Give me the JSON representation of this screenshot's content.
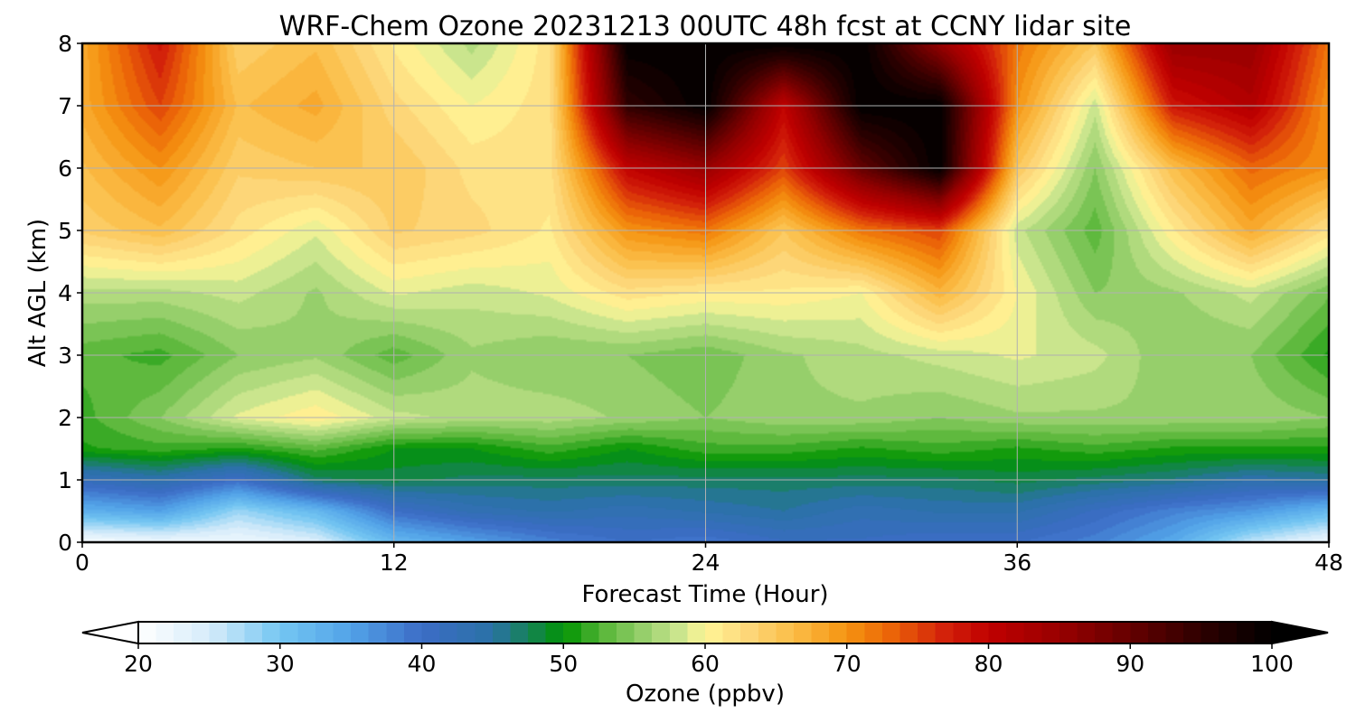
{
  "chart_data": {
    "type": "heatmap",
    "title": "WRF-Chem Ozone  20231213 00UTC 48h fcst at CCNY lidar site",
    "xlabel": "Forecast Time (Hour)",
    "ylabel": "Alt AGL (km)",
    "xlim": [
      0,
      48
    ],
    "ylim": [
      0,
      8
    ],
    "x_ticks": [
      0,
      12,
      24,
      36,
      48
    ],
    "y_ticks": [
      0,
      1,
      2,
      3,
      4,
      5,
      6,
      7,
      8
    ],
    "grid": true,
    "x": [
      0,
      3,
      6,
      9,
      12,
      15,
      18,
      21,
      24,
      27,
      30,
      33,
      36,
      39,
      42,
      45,
      48
    ],
    "y": [
      0,
      0.5,
      1,
      1.5,
      2,
      3,
      4,
      5,
      6,
      7,
      8
    ],
    "z": [
      [
        21,
        22,
        22,
        24,
        32,
        35,
        38,
        40,
        39,
        41,
        41,
        40,
        40,
        38,
        34,
        26,
        22
      ],
      [
        33,
        35,
        28,
        32,
        40,
        43,
        44,
        43,
        44,
        45,
        43,
        44,
        44,
        41,
        38,
        36,
        32
      ],
      [
        42,
        44,
        40,
        47,
        48,
        47,
        47,
        47,
        47,
        47,
        47,
        47,
        48,
        47,
        46,
        44,
        45
      ],
      [
        51,
        52,
        51,
        53,
        50,
        50,
        52,
        50,
        52,
        52,
        51,
        52,
        51,
        52,
        51,
        51,
        51
      ],
      [
        52,
        55,
        59,
        61,
        58,
        57,
        57,
        56,
        55,
        56,
        56,
        55,
        56,
        56,
        56,
        56,
        55
      ],
      [
        53,
        52,
        55,
        56,
        53,
        56,
        55,
        55,
        54,
        56,
        57,
        58,
        59,
        58,
        55,
        55,
        51
      ],
      [
        57,
        57,
        58,
        56,
        59,
        58,
        59,
        62,
        61,
        61,
        60,
        67,
        60,
        55,
        56,
        58,
        54
      ],
      [
        64,
        66,
        62,
        59,
        64,
        63,
        61,
        70,
        72,
        65,
        72,
        75,
        58,
        53,
        61,
        68,
        62
      ],
      [
        66,
        70,
        64,
        65,
        65,
        62,
        62,
        80,
        85,
        75,
        90,
        100,
        65,
        55,
        66,
        73,
        70
      ],
      [
        68,
        75,
        66,
        68,
        63,
        60,
        62,
        95,
        100,
        80,
        100,
        100,
        70,
        58,
        78,
        82,
        70
      ],
      [
        68,
        78,
        64,
        66,
        61,
        57,
        62,
        100,
        100,
        100,
        100,
        85,
        72,
        65,
        85,
        85,
        72
      ]
    ],
    "colorbar": {
      "label": "Ozone  (ppbv)",
      "min": 20,
      "max": 100,
      "ticks": [
        20,
        30,
        40,
        50,
        60,
        70,
        80,
        90,
        100
      ],
      "extend": "both",
      "color_stops": [
        [
          20,
          "#ffffff"
        ],
        [
          25,
          "#d6ecfa"
        ],
        [
          30,
          "#74c6f2"
        ],
        [
          35,
          "#52a3e8"
        ],
        [
          40,
          "#3c6cc6"
        ],
        [
          45,
          "#2a72a6"
        ],
        [
          49,
          "#0a8c28"
        ],
        [
          50,
          "#009300"
        ],
        [
          53,
          "#5cb83c"
        ],
        [
          56,
          "#9ed272"
        ],
        [
          58,
          "#c6e48c"
        ],
        [
          60,
          "#fff597"
        ],
        [
          63,
          "#fdd77a"
        ],
        [
          66,
          "#fbbf4a"
        ],
        [
          70,
          "#f59411"
        ],
        [
          73,
          "#ec6608"
        ],
        [
          77,
          "#d2200a"
        ],
        [
          80,
          "#c00000"
        ],
        [
          85,
          "#980000"
        ],
        [
          90,
          "#650000"
        ],
        [
          95,
          "#2e0000"
        ],
        [
          100,
          "#000000"
        ]
      ]
    }
  }
}
